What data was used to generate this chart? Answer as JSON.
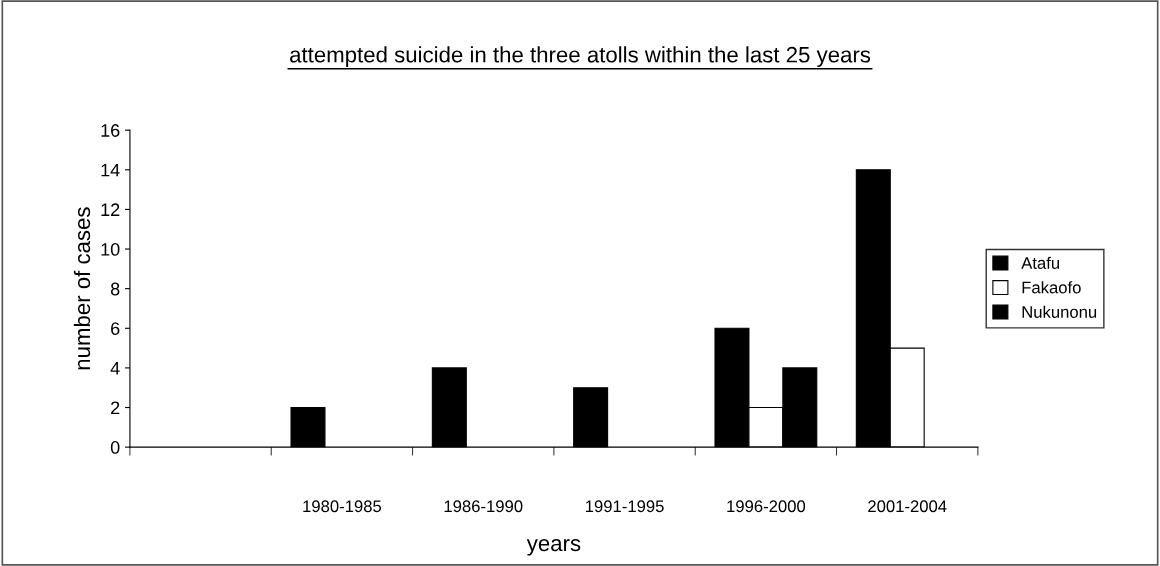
{
  "chart_data": {
    "type": "bar",
    "title": "attempted suicide in the three atolls within the last 25 years",
    "xlabel": "years",
    "ylabel": "number of cases",
    "categories": [
      null,
      "1980-1985",
      "1986-1990",
      "1991-1995",
      "1996-2000",
      "2001-2004"
    ],
    "series": [
      {
        "name": "Atafu",
        "color": "#000000",
        "values": [
          null,
          2,
          4,
          3,
          6,
          14
        ]
      },
      {
        "name": "Fakaofo",
        "color": "#ffffff",
        "values": [
          null,
          null,
          null,
          null,
          2,
          5
        ]
      },
      {
        "name": "Nukunonu",
        "color": "#000000",
        "values": [
          null,
          null,
          null,
          null,
          4,
          null
        ]
      }
    ],
    "ylim": [
      0,
      16
    ],
    "yticks": [
      0,
      2,
      4,
      6,
      8,
      10,
      12,
      14,
      16
    ],
    "grid": false,
    "legend": "right"
  }
}
